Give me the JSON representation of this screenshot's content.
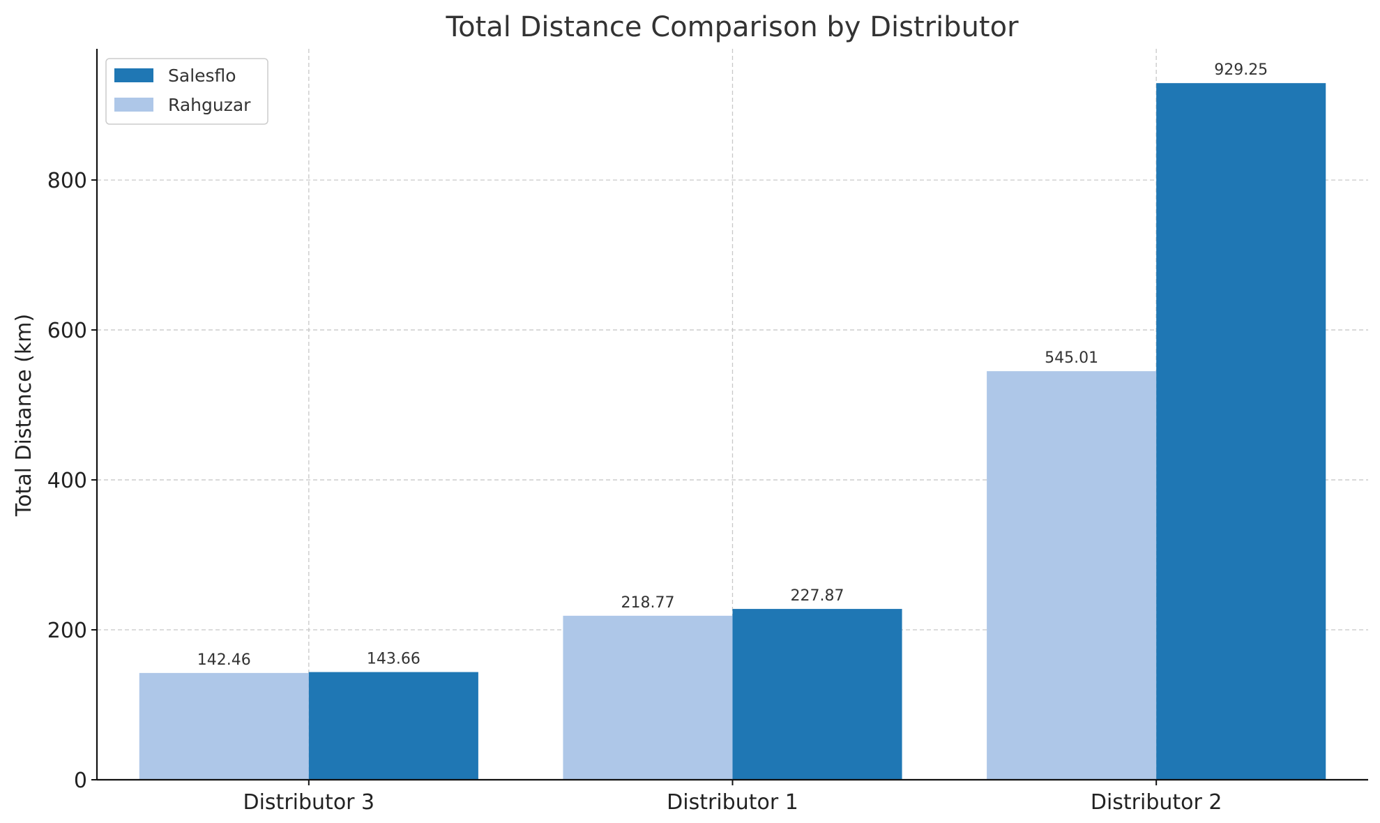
{
  "chart_data": {
    "type": "bar",
    "title": "Total Distance Comparison by Distributor",
    "xlabel": "",
    "ylabel": "Total Distance (km)",
    "categories": [
      "Distributor 3",
      "Distributor 1",
      "Distributor 2"
    ],
    "series": [
      {
        "name": "Rahguzar",
        "values": [
          142.46,
          218.77,
          545.01
        ],
        "color": "#aec7e8"
      },
      {
        "name": "Salesflo",
        "values": [
          143.66,
          227.87,
          929.25
        ],
        "color": "#1f77b4"
      }
    ],
    "ylim": [
      0,
      975
    ],
    "yticks": [
      0,
      200,
      400,
      600,
      800
    ],
    "grid": true,
    "legend": {
      "position": "top-left",
      "order": [
        "Salesflo",
        "Rahguzar"
      ]
    }
  }
}
